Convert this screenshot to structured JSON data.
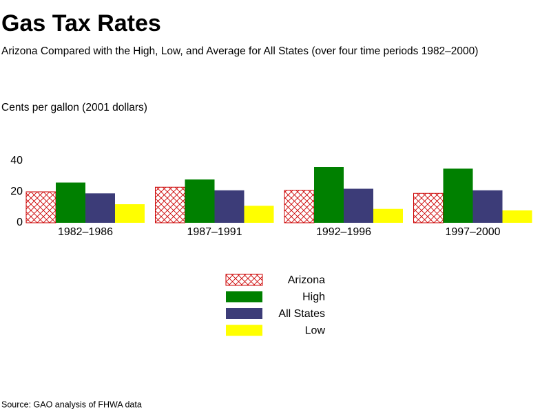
{
  "chart_data": {
    "type": "bar",
    "title": "Gas Tax Rates",
    "subtitle": "Arizona Compared with the High, Low, and Average for All States (over four time periods 1982–2000)",
    "y_label": "Cents per gallon (2001 dollars)",
    "source": "Source: GAO analysis of FHWA data",
    "categories": [
      "1982–1986",
      "1987–1991",
      "1992–1996",
      "1997–2000"
    ],
    "series": [
      {
        "name": "Arizona",
        "color": "#cc0000",
        "hatch": "cross",
        "values": [
          20,
          23,
          21,
          19
        ]
      },
      {
        "name": "High",
        "color": "#008000",
        "values": [
          26,
          28,
          36,
          35
        ]
      },
      {
        "name": "All States",
        "color": "#3c3c78",
        "values": [
          19,
          21,
          22,
          21
        ]
      },
      {
        "name": "Low",
        "color": "#ffff00",
        "values": [
          12,
          11,
          9,
          8
        ]
      }
    ],
    "ylim": [
      0,
      40
    ],
    "yticks": [
      0,
      20,
      40
    ],
    "grid": false
  }
}
